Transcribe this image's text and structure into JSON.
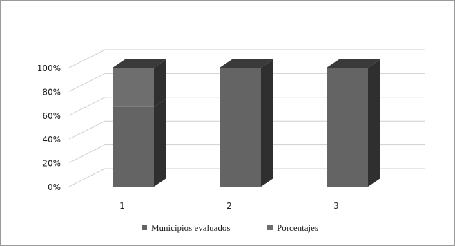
{
  "chart_data": {
    "type": "bar",
    "stacked": true,
    "percent": true,
    "three_d": true,
    "categories": [
      "1",
      "2",
      "3"
    ],
    "series": [
      {
        "name": "Municipios evaluados",
        "values": [
          67,
          100,
          100
        ],
        "color": "#646464"
      },
      {
        "name": "Porcentajes",
        "values": [
          33,
          0,
          0
        ],
        "color": "#6e6e6e"
      }
    ],
    "ylim": [
      0,
      100
    ],
    "yticks": [
      "0%",
      "20%",
      "40%",
      "60%",
      "80%",
      "100%"
    ],
    "grid": true,
    "legend": "bottom",
    "colors": {
      "side": "#2f2f2f",
      "top": "#3a3a3a",
      "grid": "#cfcfcf",
      "border": "#9a9a9a"
    }
  }
}
